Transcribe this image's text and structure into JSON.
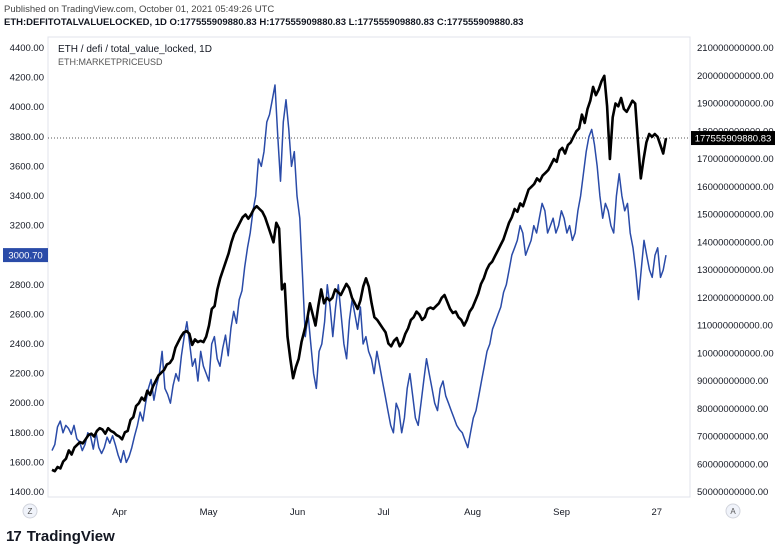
{
  "header": {
    "published": "Published on TradingView.com, October 01, 2021 05:49:26 UTC",
    "ohlc": "ETH:DEFITOTALVALUELOCKED, 1D  O:177555909880.83  H:177555909880.83  L:177555909880.83  C:177555909880.83"
  },
  "legend": {
    "line1": "ETH / defi / total_value_locked, 1D",
    "line2": "ETH:MARKETPRICEUSD"
  },
  "buttons": {
    "left": "Z",
    "right": "A"
  },
  "footer": {
    "brand": "TradingView",
    "logo": "17"
  },
  "chart_data": {
    "type": "line",
    "x_labels": [
      "Apr",
      "May",
      "Jun",
      "Jul",
      "Aug",
      "Sep",
      "27"
    ],
    "left_axis": {
      "ticks": [
        "4400.00",
        "4200.00",
        "4000.00",
        "3800.00",
        "3600.00",
        "3400.00",
        "3200.00",
        "3000.00",
        "2800.00",
        "2600.00",
        "2400.00",
        "2200.00",
        "2000.00",
        "1800.00",
        "1600.00",
        "1400.00"
      ],
      "ylim": [
        1400,
        4400
      ],
      "current_label": "3000.70",
      "current_value": 3000.7,
      "color": "#2a4ba8"
    },
    "right_axis": {
      "ticks": [
        "210000000000.00",
        "200000000000.00",
        "190000000000.00",
        "180000000000.00",
        "170000000000.00",
        "160000000000.00",
        "150000000000.00",
        "140000000000.00",
        "130000000000.00",
        "120000000000.00",
        "110000000000.00",
        "100000000000.00",
        "90000000000.00",
        "80000000000.00",
        "70000000000.00",
        "60000000000.00",
        "50000000000.00"
      ],
      "ylim": [
        50000000000,
        210000000000
      ],
      "current_label": "177555909880.83",
      "current_value": 177555909880.83,
      "color": "#000000"
    },
    "series": [
      {
        "axis": "right",
        "color": "#000000",
        "values": [
          58,
          57.5,
          59,
          58.5,
          61,
          62,
          65,
          63.5,
          66,
          67,
          68,
          67.5,
          69,
          70.5,
          71,
          70,
          72,
          73,
          72.5,
          71,
          73,
          72,
          71.5,
          70.5,
          70,
          69,
          71.5,
          72,
          76,
          77,
          81,
          82,
          84,
          83,
          86.5,
          85,
          88,
          90,
          92,
          93,
          94,
          96,
          96.5,
          98,
          102,
          104,
          106,
          107.5,
          108,
          107,
          103,
          105,
          104,
          104.5,
          104,
          106,
          110,
          116,
          117,
          123,
          127,
          130,
          133,
          136,
          140,
          143,
          145,
          147,
          149,
          150,
          148.5,
          150,
          152,
          153,
          152,
          151,
          149,
          146,
          143,
          140,
          147,
          145,
          123,
          125,
          106,
          98,
          91,
          95,
          98,
          104,
          108,
          112,
          118,
          114,
          110,
          117,
          123,
          118,
          120,
          119,
          120,
          123,
          122,
          121,
          123,
          125,
          123.5,
          120,
          118,
          116,
          119,
          124,
          127,
          124,
          118,
          113,
          112,
          110.5,
          109,
          107.5,
          103.5,
          102.5,
          104.5,
          105.5,
          102.5,
          104,
          107,
          109,
          112,
          113,
          115,
          114,
          112,
          113,
          116,
          116.5,
          116,
          117,
          118,
          120,
          121,
          118.5,
          116,
          114.5,
          115,
          113,
          112,
          110,
          112,
          115,
          116.5,
          119,
          121.5,
          125,
          127,
          130,
          132,
          133,
          135,
          137,
          139,
          141,
          144,
          147,
          149,
          152,
          151,
          154,
          153,
          156,
          159,
          160,
          161,
          163,
          162,
          164,
          165,
          166,
          168,
          170,
          169,
          173,
          174,
          172,
          175,
          176,
          178,
          180,
          181,
          186,
          183,
          188,
          191,
          196,
          193,
          195,
          198,
          200,
          189,
          170,
          185,
          190,
          189,
          192,
          188,
          187,
          189,
          191,
          190,
          176,
          163,
          170,
          176,
          179,
          178,
          179,
          178,
          175,
          172,
          177.5
        ]
      },
      {
        "axis": "left",
        "color": "#2a4ba8",
        "values": [
          1680,
          1720,
          1840,
          1880,
          1800,
          1850,
          1830,
          1790,
          1850,
          1760,
          1740,
          1680,
          1720,
          1800,
          1780,
          1690,
          1800,
          1700,
          1660,
          1700,
          1770,
          1730,
          1780,
          1720,
          1650,
          1600,
          1680,
          1600,
          1640,
          1700,
          1780,
          1850,
          1940,
          1880,
          2000,
          2100,
          2160,
          2020,
          2120,
          2200,
          2350,
          2100,
          2060,
          2000,
          2120,
          2200,
          2150,
          2320,
          2450,
          2550,
          2400,
          2250,
          2300,
          2150,
          2350,
          2250,
          2200,
          2150,
          2400,
          2450,
          2300,
          2250,
          2370,
          2460,
          2320,
          2510,
          2620,
          2540,
          2700,
          2760,
          2920,
          3050,
          3150,
          3300,
          3400,
          3650,
          3600,
          3700,
          3900,
          3950,
          4050,
          4150,
          3800,
          3500,
          3900,
          4050,
          3850,
          3600,
          3700,
          3400,
          3250,
          2850,
          2450,
          2600,
          2400,
          2200,
          2100,
          2350,
          2400,
          2550,
          2800,
          2650,
          2450,
          2650,
          2800,
          2600,
          2400,
          2300,
          2560,
          2700,
          2600,
          2500,
          2650,
          2400,
          2450,
          2350,
          2300,
          2200,
          2350,
          2250,
          2150,
          2050,
          1950,
          1850,
          1800,
          2000,
          1950,
          1800,
          1900,
          2100,
          2200,
          2050,
          1900,
          1850,
          2000,
          2150,
          2300,
          2200,
          2100,
          2000,
          1950,
          2100,
          2150,
          2050,
          2000,
          1950,
          1900,
          1850,
          1820,
          1800,
          1750,
          1700,
          1800,
          1900,
          1950,
          2050,
          2150,
          2250,
          2350,
          2400,
          2500,
          2550,
          2600,
          2650,
          2750,
          2800,
          2900,
          3000,
          3050,
          3100,
          3200,
          3150,
          3000,
          3050,
          3100,
          3200,
          3150,
          3250,
          3350,
          3300,
          3150,
          3200,
          3250,
          3150,
          3200,
          3300,
          3250,
          3150,
          3200,
          3100,
          3150,
          3300,
          3400,
          3550,
          3700,
          3800,
          3850,
          3750,
          3600,
          3400,
          3250,
          3350,
          3300,
          3200,
          3150,
          3400,
          3550,
          3400,
          3300,
          3350,
          3150,
          3050,
          2900,
          2700,
          2900,
          3100,
          3000,
          2900,
          2850,
          3000,
          3050,
          2850,
          2900,
          3000.7
        ]
      }
    ]
  }
}
